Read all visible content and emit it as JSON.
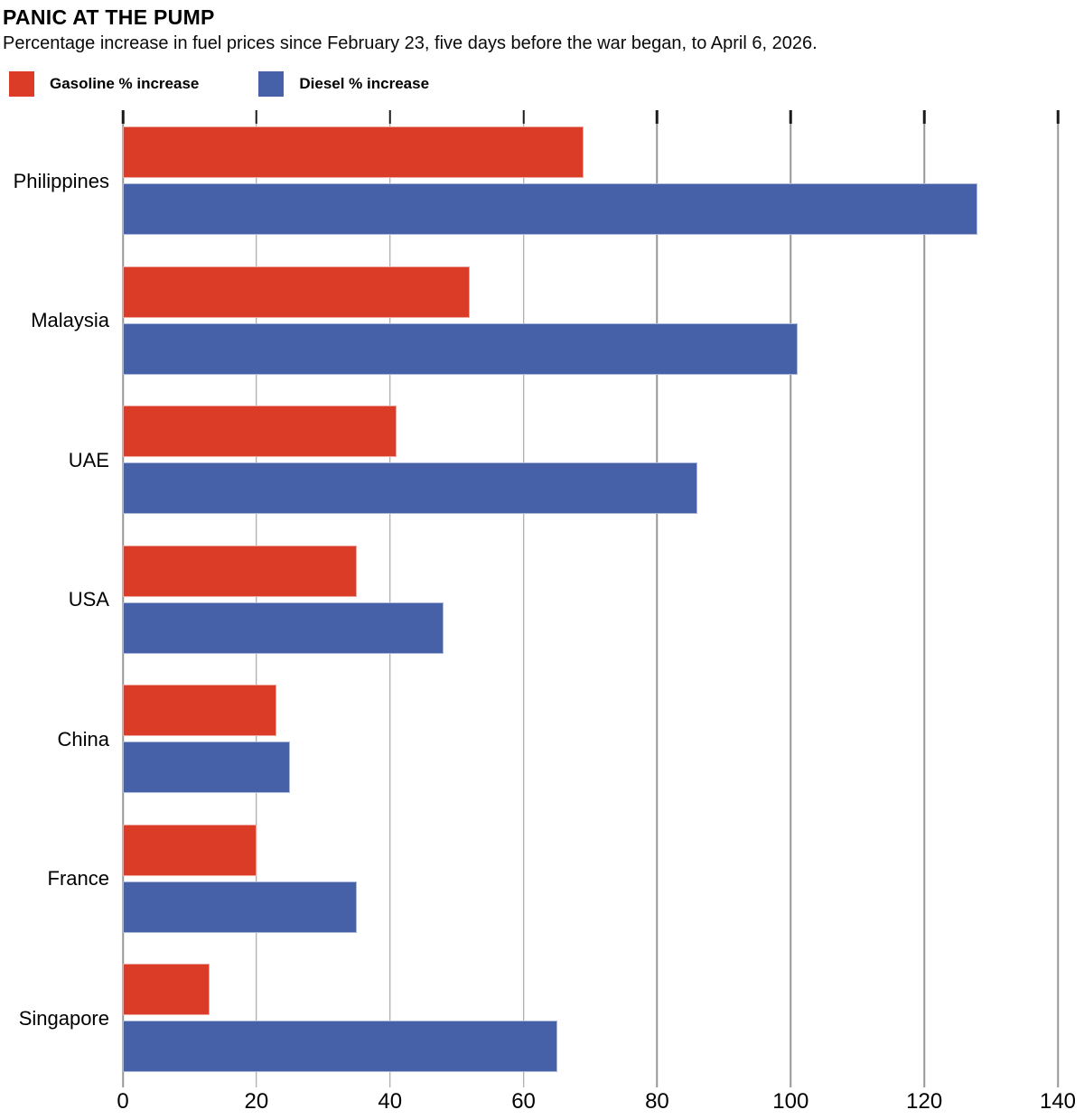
{
  "chart_data": {
    "type": "bar",
    "orientation": "horizontal",
    "title": "PANIC AT THE PUMP",
    "subtitle": "Percentage increase in fuel prices since February 23, five days before the war began, to April 6, 2026.",
    "categories": [
      "Philippines",
      "Malaysia",
      "UAE",
      "USA",
      "China",
      "France",
      "Singapore"
    ],
    "series": [
      {
        "name": "Gasoline % increase",
        "color": "#DA3C28",
        "values": [
          69,
          52,
          41,
          35,
          23,
          20,
          13
        ]
      },
      {
        "name": "Diesel % increase",
        "color": "#4661A8",
        "values": [
          128,
          101,
          86,
          48,
          25,
          35,
          65
        ]
      }
    ],
    "xlabel": "",
    "ylabel": "",
    "xlim": [
      0,
      140
    ],
    "xticks": [
      0,
      20,
      40,
      60,
      80,
      100,
      120,
      140
    ],
    "grid": true,
    "gridline_color": "#979797",
    "legend_position": "top-left"
  }
}
